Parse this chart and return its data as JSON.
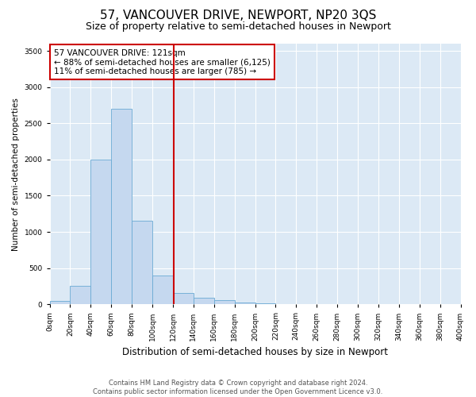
{
  "title": "57, VANCOUVER DRIVE, NEWPORT, NP20 3QS",
  "subtitle": "Size of property relative to semi-detached houses in Newport",
  "xlabel": "Distribution of semi-detached houses by size in Newport",
  "ylabel": "Number of semi-detached properties",
  "bin_edges": [
    0,
    20,
    40,
    60,
    80,
    100,
    120,
    140,
    160,
    180,
    200,
    220,
    240,
    260,
    280,
    300,
    320,
    340,
    360,
    380,
    400
  ],
  "bar_heights": [
    50,
    250,
    2000,
    2700,
    1150,
    400,
    160,
    90,
    60,
    30,
    10,
    5,
    5,
    3,
    2,
    2,
    1,
    1,
    1,
    1
  ],
  "bar_color": "#c5d8ef",
  "bar_edgecolor": "#6aaad4",
  "property_sqm": 121,
  "red_line_color": "#cc0000",
  "annotation_line1": "57 VANCOUVER DRIVE: 121sqm",
  "annotation_line2": "← 88% of semi-detached houses are smaller (6,125)",
  "annotation_line3": "11% of semi-detached houses are larger (785) →",
  "annotation_box_edgecolor": "#cc0000",
  "annotation_box_facecolor": "#ffffff",
  "ylim": [
    0,
    3600
  ],
  "yticks": [
    0,
    500,
    1000,
    1500,
    2000,
    2500,
    3000,
    3500
  ],
  "background_color": "#dce9f5",
  "grid_color": "#ffffff",
  "footer_text": "Contains HM Land Registry data © Crown copyright and database right 2024.\nContains public sector information licensed under the Open Government Licence v3.0.",
  "title_fontsize": 11,
  "subtitle_fontsize": 9,
  "xlabel_fontsize": 8.5,
  "ylabel_fontsize": 7.5,
  "tick_fontsize": 6.5,
  "annotation_fontsize": 7.5,
  "footer_fontsize": 6
}
